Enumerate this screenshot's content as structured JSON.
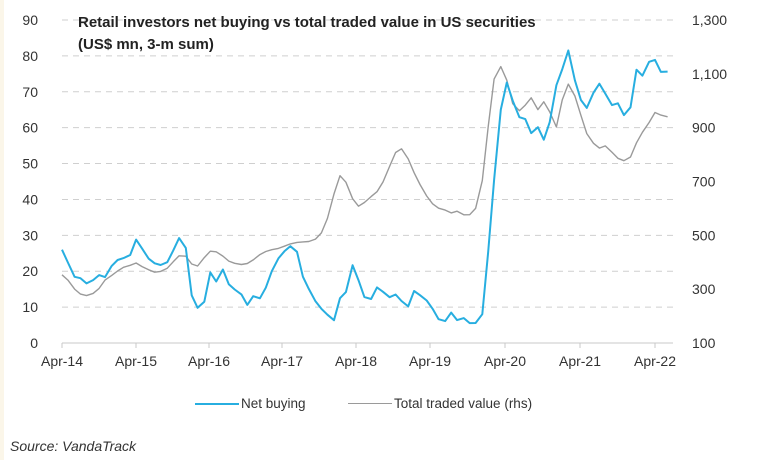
{
  "chart_data": {
    "type": "line",
    "title": "Retail investors net buying vs total traded value in US securities",
    "subtitle": "(US$ mn, 3-m sum)",
    "xlabel": "",
    "ylabel": "",
    "ylabel_right": "",
    "x_tick_labels": [
      "Apr-14",
      "Apr-15",
      "Apr-16",
      "Apr-17",
      "Apr-18",
      "Apr-19",
      "Apr-20",
      "Apr-21",
      "Apr-22"
    ],
    "x_range": [
      2014.25,
      2022.45
    ],
    "y_left": {
      "range": [
        0,
        90
      ],
      "ticks": [
        0,
        10,
        20,
        30,
        40,
        50,
        60,
        70,
        80,
        90
      ],
      "tick_labels": [
        "0",
        "10",
        "20",
        "30",
        "40",
        "50",
        "60",
        "70",
        "80",
        "90"
      ]
    },
    "y_right": {
      "range": [
        100,
        1300
      ],
      "ticks": [
        100,
        300,
        500,
        700,
        900,
        1100,
        1300
      ],
      "tick_labels": [
        "100",
        "300",
        "500",
        "700",
        "900",
        "1,100",
        "1,300"
      ]
    },
    "grid": "horizontal-dashed",
    "legend_position": "bottom",
    "series": [
      {
        "name": "Net buying",
        "axis": "left",
        "color": "#27aee0",
        "x": [
          2014.25,
          2014.33,
          2014.42,
          2014.5,
          2014.58,
          2014.67,
          2014.75,
          2014.83,
          2014.92,
          2015.0,
          2015.08,
          2015.17,
          2015.25,
          2015.33,
          2015.42,
          2015.5,
          2015.58,
          2015.67,
          2015.75,
          2015.83,
          2015.92,
          2016.0,
          2016.08,
          2016.17,
          2016.25,
          2016.33,
          2016.42,
          2016.5,
          2016.58,
          2016.67,
          2016.75,
          2016.83,
          2016.92,
          2017.0,
          2017.08,
          2017.17,
          2017.25,
          2017.33,
          2017.42,
          2017.5,
          2017.58,
          2017.67,
          2017.75,
          2017.83,
          2017.92,
          2018.0,
          2018.08,
          2018.17,
          2018.25,
          2018.33,
          2018.42,
          2018.5,
          2018.58,
          2018.67,
          2018.75,
          2018.83,
          2018.92,
          2019.0,
          2019.08,
          2019.17,
          2019.25,
          2019.33,
          2019.42,
          2019.5,
          2019.58,
          2019.67,
          2019.75,
          2019.83,
          2019.92,
          2020.0,
          2020.08,
          2020.17,
          2020.25,
          2020.33,
          2020.42,
          2020.5,
          2020.58,
          2020.67,
          2020.75,
          2020.83,
          2020.92,
          2021.0,
          2021.08,
          2021.17,
          2021.25,
          2021.33,
          2021.42,
          2021.5,
          2021.58,
          2021.67,
          2021.75,
          2021.83,
          2021.92,
          2022.0,
          2022.08,
          2022.17,
          2022.25,
          2022.33,
          2022.42
        ],
        "values": [
          26,
          22,
          18,
          18,
          17,
          18,
          19,
          18,
          21,
          23,
          24,
          25,
          29,
          26,
          23,
          22,
          22,
          23,
          26,
          29,
          26,
          13,
          10,
          12,
          20,
          17,
          20,
          16,
          15,
          14,
          11,
          13,
          12,
          15,
          20,
          24,
          26,
          27,
          25,
          18,
          15,
          12,
          10,
          8,
          6,
          12,
          14,
          22,
          18,
          13,
          12,
          15,
          14,
          13,
          14,
          12,
          10,
          14,
          13,
          12,
          10,
          7,
          6,
          8,
          6,
          7,
          6,
          6,
          8,
          25,
          45,
          65,
          73,
          68,
          63,
          62,
          58,
          60,
          57,
          62,
          72,
          76,
          81,
          73,
          68,
          66,
          70,
          72,
          69,
          66,
          67,
          64,
          66,
          76,
          74,
          78,
          79,
          76,
          76
        ]
      },
      {
        "name": "Total traded value (rhs)",
        "axis": "right",
        "color": "#9a9a9a",
        "x": [
          2014.25,
          2014.33,
          2014.42,
          2014.5,
          2014.58,
          2014.67,
          2014.75,
          2014.83,
          2014.92,
          2015.0,
          2015.08,
          2015.17,
          2015.25,
          2015.33,
          2015.42,
          2015.5,
          2015.58,
          2015.67,
          2015.75,
          2015.83,
          2015.92,
          2016.0,
          2016.08,
          2016.17,
          2016.25,
          2016.33,
          2016.42,
          2016.5,
          2016.58,
          2016.67,
          2016.75,
          2016.83,
          2016.92,
          2017.0,
          2017.08,
          2017.17,
          2017.25,
          2017.33,
          2017.42,
          2017.5,
          2017.58,
          2017.67,
          2017.75,
          2017.83,
          2017.92,
          2018.0,
          2018.08,
          2018.17,
          2018.25,
          2018.33,
          2018.42,
          2018.5,
          2018.58,
          2018.67,
          2018.75,
          2018.83,
          2018.92,
          2019.0,
          2019.08,
          2019.17,
          2019.25,
          2019.33,
          2019.42,
          2019.5,
          2019.58,
          2019.67,
          2019.75,
          2019.83,
          2019.92,
          2020.0,
          2020.08,
          2020.17,
          2020.25,
          2020.33,
          2020.42,
          2020.5,
          2020.58,
          2020.67,
          2020.75,
          2020.83,
          2020.92,
          2021.0,
          2021.08,
          2021.17,
          2021.25,
          2021.33,
          2021.42,
          2021.5,
          2021.58,
          2021.67,
          2021.75,
          2021.83,
          2021.92,
          2022.0,
          2022.08,
          2022.17,
          2022.25,
          2022.33,
          2022.42
        ],
        "values": [
          350,
          330,
          300,
          285,
          280,
          285,
          300,
          330,
          350,
          370,
          385,
          390,
          395,
          380,
          370,
          365,
          370,
          380,
          400,
          420,
          420,
          395,
          390,
          420,
          440,
          435,
          420,
          405,
          400,
          395,
          395,
          405,
          425,
          440,
          450,
          455,
          460,
          465,
          470,
          475,
          480,
          490,
          510,
          560,
          650,
          720,
          700,
          640,
          610,
          620,
          640,
          660,
          700,
          760,
          810,
          820,
          780,
          730,
          690,
          650,
          620,
          600,
          590,
          580,
          590,
          580,
          580,
          600,
          700,
          900,
          1080,
          1130,
          1080,
          990,
          960,
          980,
          1010,
          970,
          1000,
          960,
          900,
          1000,
          1060,
          1020,
          950,
          880,
          840,
          820,
          830,
          810,
          790,
          780,
          790,
          840,
          880,
          920,
          960,
          950,
          940
        ]
      }
    ]
  },
  "legend": {
    "items": [
      {
        "label": "Net buying",
        "color": "#27aee0"
      },
      {
        "label": "Total traded value (rhs)",
        "color": "#9a9a9a"
      }
    ]
  },
  "source": "Source: VandaTrack"
}
